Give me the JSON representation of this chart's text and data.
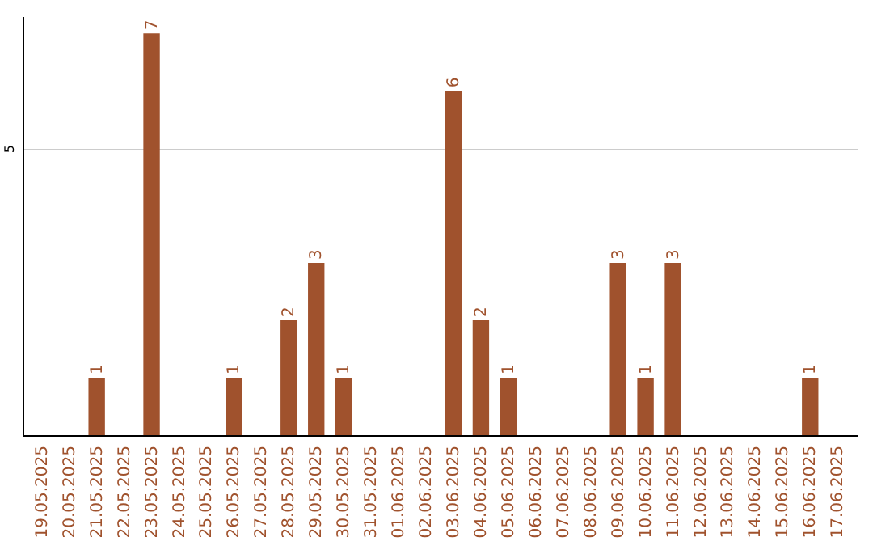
{
  "chart_data": {
    "type": "bar",
    "categories": [
      "19.05.2025",
      "20.05.2025",
      "21.05.2025",
      "22.05.2025",
      "23.05.2025",
      "24.05.2025",
      "25.05.2025",
      "26.05.2025",
      "27.05.2025",
      "28.05.2025",
      "29.05.2025",
      "30.05.2025",
      "31.05.2025",
      "01.06.2025",
      "02.06.2025",
      "03.06.2025",
      "04.06.2025",
      "05.06.2025",
      "06.06.2025",
      "07.06.2025",
      "08.06.2025",
      "09.06.2025",
      "10.06.2025",
      "11.06.2025",
      "12.06.2025",
      "13.06.2025",
      "14.06.2025",
      "15.06.2025",
      "16.06.2025",
      "17.06.2025"
    ],
    "values": [
      0,
      0,
      1,
      0,
      7,
      0,
      0,
      1,
      0,
      2,
      3,
      1,
      0,
      0,
      0,
      6,
      2,
      1,
      0,
      0,
      0,
      3,
      1,
      3,
      0,
      0,
      0,
      0,
      1,
      0
    ],
    "value_labels": [
      null,
      null,
      "1",
      null,
      "7",
      null,
      null,
      "1",
      null,
      "2",
      "3",
      "1",
      null,
      null,
      null,
      "6",
      "2",
      "1",
      null,
      null,
      null,
      "3",
      "1",
      "3",
      null,
      null,
      null,
      null,
      "1",
      null
    ],
    "color": "#a0522d",
    "ylim": [
      0,
      7.3
    ],
    "yticks": [
      5
    ],
    "grid": "y"
  }
}
